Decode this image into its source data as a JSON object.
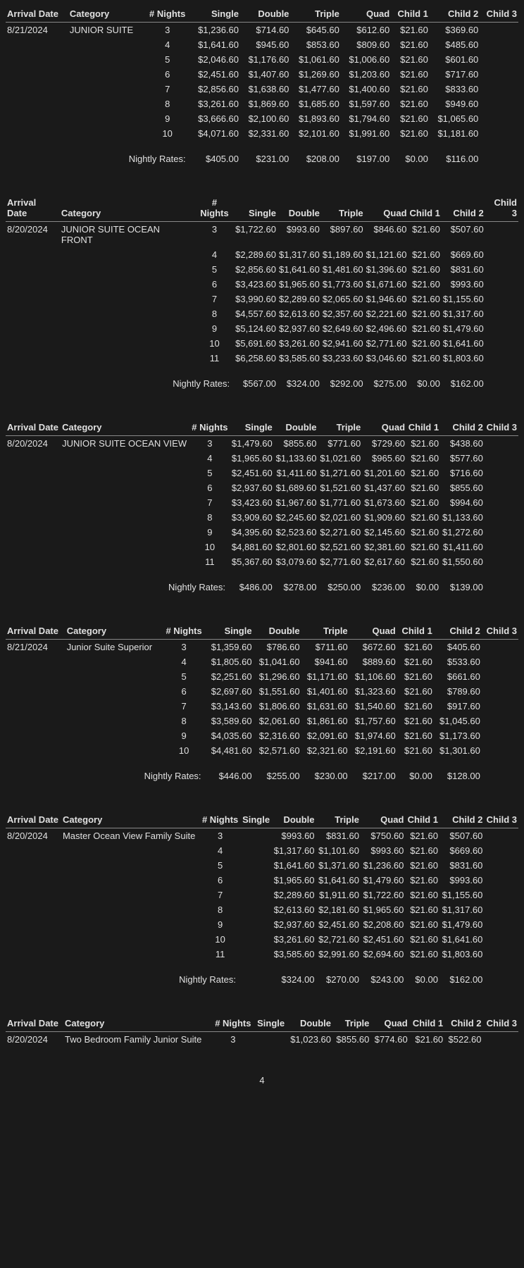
{
  "headers": {
    "arrival_date": "Arrival Date",
    "category": "Category",
    "nights": "# Nights",
    "single": "Single",
    "double": "Double",
    "triple": "Triple",
    "quad": "Quad",
    "child1": "Child 1",
    "child2": "Child 2",
    "child3": "Child 3"
  },
  "nightly_label": "Nightly Rates:",
  "page_number": "4",
  "sections": [
    {
      "arrival_date": "8/21/2024",
      "category": "JUNIOR SUITE",
      "rows": [
        {
          "n": "3",
          "s": "$1,236.60",
          "d": "$714.60",
          "t": "$645.60",
          "q": "$612.60",
          "c1": "$21.60",
          "c2": "$369.60",
          "c3": ""
        },
        {
          "n": "4",
          "s": "$1,641.60",
          "d": "$945.60",
          "t": "$853.60",
          "q": "$809.60",
          "c1": "$21.60",
          "c2": "$485.60",
          "c3": ""
        },
        {
          "n": "5",
          "s": "$2,046.60",
          "d": "$1,176.60",
          "t": "$1,061.60",
          "q": "$1,006.60",
          "c1": "$21.60",
          "c2": "$601.60",
          "c3": ""
        },
        {
          "n": "6",
          "s": "$2,451.60",
          "d": "$1,407.60",
          "t": "$1,269.60",
          "q": "$1,203.60",
          "c1": "$21.60",
          "c2": "$717.60",
          "c3": ""
        },
        {
          "n": "7",
          "s": "$2,856.60",
          "d": "$1,638.60",
          "t": "$1,477.60",
          "q": "$1,400.60",
          "c1": "$21.60",
          "c2": "$833.60",
          "c3": ""
        },
        {
          "n": "8",
          "s": "$3,261.60",
          "d": "$1,869.60",
          "t": "$1,685.60",
          "q": "$1,597.60",
          "c1": "$21.60",
          "c2": "$949.60",
          "c3": ""
        },
        {
          "n": "9",
          "s": "$3,666.60",
          "d": "$2,100.60",
          "t": "$1,893.60",
          "q": "$1,794.60",
          "c1": "$21.60",
          "c2": "$1,065.60",
          "c3": ""
        },
        {
          "n": "10",
          "s": "$4,071.60",
          "d": "$2,331.60",
          "t": "$2,101.60",
          "q": "$1,991.60",
          "c1": "$21.60",
          "c2": "$1,181.60",
          "c3": ""
        }
      ],
      "nightly": {
        "s": "$405.00",
        "d": "$231.00",
        "t": "$208.00",
        "q": "$197.00",
        "c1": "$0.00",
        "c2": "$116.00",
        "c3": ""
      }
    },
    {
      "arrival_date": "8/20/2024",
      "category": "JUNIOR SUITE OCEAN FRONT",
      "rows": [
        {
          "n": "3",
          "s": "$1,722.60",
          "d": "$993.60",
          "t": "$897.60",
          "q": "$846.60",
          "c1": "$21.60",
          "c2": "$507.60",
          "c3": ""
        },
        {
          "n": "4",
          "s": "$2,289.60",
          "d": "$1,317.60",
          "t": "$1,189.60",
          "q": "$1,121.60",
          "c1": "$21.60",
          "c2": "$669.60",
          "c3": ""
        },
        {
          "n": "5",
          "s": "$2,856.60",
          "d": "$1,641.60",
          "t": "$1,481.60",
          "q": "$1,396.60",
          "c1": "$21.60",
          "c2": "$831.60",
          "c3": ""
        },
        {
          "n": "6",
          "s": "$3,423.60",
          "d": "$1,965.60",
          "t": "$1,773.60",
          "q": "$1,671.60",
          "c1": "$21.60",
          "c2": "$993.60",
          "c3": ""
        },
        {
          "n": "7",
          "s": "$3,990.60",
          "d": "$2,289.60",
          "t": "$2,065.60",
          "q": "$1,946.60",
          "c1": "$21.60",
          "c2": "$1,155.60",
          "c3": ""
        },
        {
          "n": "8",
          "s": "$4,557.60",
          "d": "$2,613.60",
          "t": "$2,357.60",
          "q": "$2,221.60",
          "c1": "$21.60",
          "c2": "$1,317.60",
          "c3": ""
        },
        {
          "n": "9",
          "s": "$5,124.60",
          "d": "$2,937.60",
          "t": "$2,649.60",
          "q": "$2,496.60",
          "c1": "$21.60",
          "c2": "$1,479.60",
          "c3": ""
        },
        {
          "n": "10",
          "s": "$5,691.60",
          "d": "$3,261.60",
          "t": "$2,941.60",
          "q": "$2,771.60",
          "c1": "$21.60",
          "c2": "$1,641.60",
          "c3": ""
        },
        {
          "n": "11",
          "s": "$6,258.60",
          "d": "$3,585.60",
          "t": "$3,233.60",
          "q": "$3,046.60",
          "c1": "$21.60",
          "c2": "$1,803.60",
          "c3": ""
        }
      ],
      "nightly": {
        "s": "$567.00",
        "d": "$324.00",
        "t": "$292.00",
        "q": "$275.00",
        "c1": "$0.00",
        "c2": "$162.00",
        "c3": ""
      }
    },
    {
      "arrival_date": "8/20/2024",
      "category": "JUNIOR SUITE OCEAN VIEW",
      "rows": [
        {
          "n": "3",
          "s": "$1,479.60",
          "d": "$855.60",
          "t": "$771.60",
          "q": "$729.60",
          "c1": "$21.60",
          "c2": "$438.60",
          "c3": ""
        },
        {
          "n": "4",
          "s": "$1,965.60",
          "d": "$1,133.60",
          "t": "$1,021.60",
          "q": "$965.60",
          "c1": "$21.60",
          "c2": "$577.60",
          "c3": ""
        },
        {
          "n": "5",
          "s": "$2,451.60",
          "d": "$1,411.60",
          "t": "$1,271.60",
          "q": "$1,201.60",
          "c1": "$21.60",
          "c2": "$716.60",
          "c3": ""
        },
        {
          "n": "6",
          "s": "$2,937.60",
          "d": "$1,689.60",
          "t": "$1,521.60",
          "q": "$1,437.60",
          "c1": "$21.60",
          "c2": "$855.60",
          "c3": ""
        },
        {
          "n": "7",
          "s": "$3,423.60",
          "d": "$1,967.60",
          "t": "$1,771.60",
          "q": "$1,673.60",
          "c1": "$21.60",
          "c2": "$994.60",
          "c3": ""
        },
        {
          "n": "8",
          "s": "$3,909.60",
          "d": "$2,245.60",
          "t": "$2,021.60",
          "q": "$1,909.60",
          "c1": "$21.60",
          "c2": "$1,133.60",
          "c3": ""
        },
        {
          "n": "9",
          "s": "$4,395.60",
          "d": "$2,523.60",
          "t": "$2,271.60",
          "q": "$2,145.60",
          "c1": "$21.60",
          "c2": "$1,272.60",
          "c3": ""
        },
        {
          "n": "10",
          "s": "$4,881.60",
          "d": "$2,801.60",
          "t": "$2,521.60",
          "q": "$2,381.60",
          "c1": "$21.60",
          "c2": "$1,411.60",
          "c3": ""
        },
        {
          "n": "11",
          "s": "$5,367.60",
          "d": "$3,079.60",
          "t": "$2,771.60",
          "q": "$2,617.60",
          "c1": "$21.60",
          "c2": "$1,550.60",
          "c3": ""
        }
      ],
      "nightly": {
        "s": "$486.00",
        "d": "$278.00",
        "t": "$250.00",
        "q": "$236.00",
        "c1": "$0.00",
        "c2": "$139.00",
        "c3": ""
      }
    },
    {
      "arrival_date": "8/21/2024",
      "category": "Junior Suite Superior",
      "rows": [
        {
          "n": "3",
          "s": "$1,359.60",
          "d": "$786.60",
          "t": "$711.60",
          "q": "$672.60",
          "c1": "$21.60",
          "c2": "$405.60",
          "c3": ""
        },
        {
          "n": "4",
          "s": "$1,805.60",
          "d": "$1,041.60",
          "t": "$941.60",
          "q": "$889.60",
          "c1": "$21.60",
          "c2": "$533.60",
          "c3": ""
        },
        {
          "n": "5",
          "s": "$2,251.60",
          "d": "$1,296.60",
          "t": "$1,171.60",
          "q": "$1,106.60",
          "c1": "$21.60",
          "c2": "$661.60",
          "c3": ""
        },
        {
          "n": "6",
          "s": "$2,697.60",
          "d": "$1,551.60",
          "t": "$1,401.60",
          "q": "$1,323.60",
          "c1": "$21.60",
          "c2": "$789.60",
          "c3": ""
        },
        {
          "n": "7",
          "s": "$3,143.60",
          "d": "$1,806.60",
          "t": "$1,631.60",
          "q": "$1,540.60",
          "c1": "$21.60",
          "c2": "$917.60",
          "c3": ""
        },
        {
          "n": "8",
          "s": "$3,589.60",
          "d": "$2,061.60",
          "t": "$1,861.60",
          "q": "$1,757.60",
          "c1": "$21.60",
          "c2": "$1,045.60",
          "c3": ""
        },
        {
          "n": "9",
          "s": "$4,035.60",
          "d": "$2,316.60",
          "t": "$2,091.60",
          "q": "$1,974.60",
          "c1": "$21.60",
          "c2": "$1,173.60",
          "c3": ""
        },
        {
          "n": "10",
          "s": "$4,481.60",
          "d": "$2,571.60",
          "t": "$2,321.60",
          "q": "$2,191.60",
          "c1": "$21.60",
          "c2": "$1,301.60",
          "c3": ""
        }
      ],
      "nightly": {
        "s": "$446.00",
        "d": "$255.00",
        "t": "$230.00",
        "q": "$217.00",
        "c1": "$0.00",
        "c2": "$128.00",
        "c3": ""
      }
    },
    {
      "arrival_date": "8/20/2024",
      "category": "Master Ocean View Family Suite",
      "rows": [
        {
          "n": "3",
          "s": "",
          "d": "$993.60",
          "t": "$831.60",
          "q": "$750.60",
          "c1": "$21.60",
          "c2": "$507.60",
          "c3": ""
        },
        {
          "n": "4",
          "s": "",
          "d": "$1,317.60",
          "t": "$1,101.60",
          "q": "$993.60",
          "c1": "$21.60",
          "c2": "$669.60",
          "c3": ""
        },
        {
          "n": "5",
          "s": "",
          "d": "$1,641.60",
          "t": "$1,371.60",
          "q": "$1,236.60",
          "c1": "$21.60",
          "c2": "$831.60",
          "c3": ""
        },
        {
          "n": "6",
          "s": "",
          "d": "$1,965.60",
          "t": "$1,641.60",
          "q": "$1,479.60",
          "c1": "$21.60",
          "c2": "$993.60",
          "c3": ""
        },
        {
          "n": "7",
          "s": "",
          "d": "$2,289.60",
          "t": "$1,911.60",
          "q": "$1,722.60",
          "c1": "$21.60",
          "c2": "$1,155.60",
          "c3": ""
        },
        {
          "n": "8",
          "s": "",
          "d": "$2,613.60",
          "t": "$2,181.60",
          "q": "$1,965.60",
          "c1": "$21.60",
          "c2": "$1,317.60",
          "c3": ""
        },
        {
          "n": "9",
          "s": "",
          "d": "$2,937.60",
          "t": "$2,451.60",
          "q": "$2,208.60",
          "c1": "$21.60",
          "c2": "$1,479.60",
          "c3": ""
        },
        {
          "n": "10",
          "s": "",
          "d": "$3,261.60",
          "t": "$2,721.60",
          "q": "$2,451.60",
          "c1": "$21.60",
          "c2": "$1,641.60",
          "c3": ""
        },
        {
          "n": "11",
          "s": "",
          "d": "$3,585.60",
          "t": "$2,991.60",
          "q": "$2,694.60",
          "c1": "$21.60",
          "c2": "$1,803.60",
          "c3": ""
        }
      ],
      "nightly": {
        "s": "",
        "d": "$324.00",
        "t": "$270.00",
        "q": "$243.00",
        "c1": "$0.00",
        "c2": "$162.00",
        "c3": ""
      }
    },
    {
      "arrival_date": "8/20/2024",
      "category": "Two Bedroom Family Junior Suite",
      "rows": [
        {
          "n": "3",
          "s": "",
          "d": "$1,023.60",
          "t": "$855.60",
          "q": "$774.60",
          "c1": "$21.60",
          "c2": "$522.60",
          "c3": ""
        }
      ],
      "nightly": null
    }
  ]
}
